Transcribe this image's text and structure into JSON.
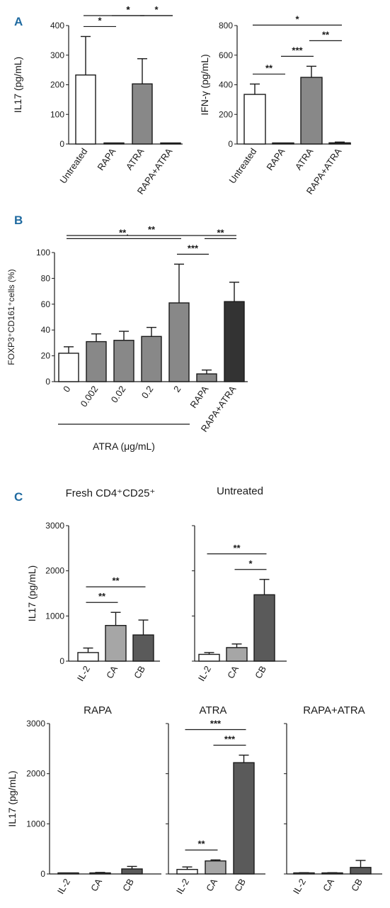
{
  "panel_labels": [
    "A",
    "B",
    "C"
  ],
  "colors": {
    "white": "#ffffff",
    "gray": "#888888",
    "dark": "#333333",
    "medium": "#777777",
    "light": "#a6a6a6",
    "deep": "#5a5a5a"
  },
  "chart_data": [
    {
      "id": "A1",
      "type": "bar",
      "title": "",
      "ylabel": "IL17 (pg/mL)",
      "xlabel": "",
      "ylim": [
        0,
        400
      ],
      "yticks": [
        0,
        100,
        200,
        300,
        400
      ],
      "categories": [
        "Untreated",
        "RAPA",
        "ATRA",
        "RAPA+ATRA"
      ],
      "values": [
        233,
        3,
        203,
        2
      ],
      "errors": [
        130,
        0,
        85,
        0
      ],
      "bar_colors": [
        "#ffffff",
        "#888888",
        "#888888",
        "#333333"
      ],
      "significance": [
        {
          "from": 0,
          "to": 1,
          "label": "*"
        },
        {
          "from": 1,
          "to": 2,
          "label": "*"
        },
        {
          "from": 2,
          "to": 3,
          "label": "*"
        },
        {
          "from": 0,
          "to": 3,
          "label": "*"
        }
      ]
    },
    {
      "id": "A2",
      "type": "bar",
      "title": "",
      "ylabel": "IFN-γ (pg/mL)",
      "xlabel": "",
      "ylim": [
        0,
        800
      ],
      "yticks": [
        0,
        200,
        400,
        600,
        800
      ],
      "categories": [
        "Untreated",
        "RAPA",
        "ATRA",
        "RAPA+ATRA"
      ],
      "values": [
        335,
        3,
        450,
        8
      ],
      "errors": [
        70,
        0,
        75,
        5
      ],
      "bar_colors": [
        "#ffffff",
        "#888888",
        "#888888",
        "#333333"
      ],
      "significance": [
        {
          "from": 0,
          "to": 1,
          "label": "**"
        },
        {
          "from": 1,
          "to": 2,
          "label": "***"
        },
        {
          "from": 2,
          "to": 3,
          "label": "**"
        },
        {
          "from": 0,
          "to": 3,
          "label": "*"
        }
      ]
    },
    {
      "id": "B",
      "type": "bar",
      "title": "",
      "ylabel": "FOXP3⁺CD161⁺cells (%)",
      "xlabel": "ATRA (μg/mL)",
      "ylim": [
        0,
        100
      ],
      "yticks": [
        0,
        20,
        40,
        60,
        80,
        100
      ],
      "categories": [
        "0",
        "0.002",
        "0.02",
        "0.2",
        "2",
        "RAPA",
        "RAPA+ATRA"
      ],
      "values": [
        22,
        31,
        32,
        35,
        61,
        6,
        62
      ],
      "errors": [
        5,
        6,
        7,
        7,
        30,
        3,
        15
      ],
      "bar_colors": [
        "#ffffff",
        "#888888",
        "#888888",
        "#888888",
        "#888888",
        "#888888",
        "#333333"
      ],
      "significance": [
        {
          "from": 4,
          "to": 5,
          "label": "***"
        },
        {
          "from": 5,
          "to": 6,
          "label": "**"
        },
        {
          "from": 0,
          "to": 4,
          "label": "**."
        },
        {
          "from": 0,
          "to": 6,
          "label": "**"
        }
      ]
    },
    {
      "id": "C1",
      "type": "bar",
      "title": "Fresh CD4⁺CD25⁺",
      "ylabel": "IL17 (pg/mL)",
      "xlabel": "",
      "ylim": [
        0,
        3000
      ],
      "yticks": [
        0,
        1000,
        2000,
        3000
      ],
      "categories": [
        "IL-2",
        "CA",
        "CB"
      ],
      "values": [
        190,
        790,
        580
      ],
      "errors": [
        100,
        290,
        330
      ],
      "bar_colors": [
        "#ffffff",
        "#a6a6a6",
        "#5a5a5a"
      ],
      "significance": [
        {
          "from": 0,
          "to": 1,
          "label": "**"
        },
        {
          "from": 0,
          "to": 2,
          "label": "**"
        }
      ]
    },
    {
      "id": "C2",
      "type": "bar",
      "title": "Untreated",
      "ylabel": "",
      "xlabel": "",
      "ylim": [
        0,
        3000
      ],
      "yticks": [
        0,
        1000,
        2000,
        3000
      ],
      "categories": [
        "IL-2",
        "CA",
        "CB"
      ],
      "values": [
        150,
        300,
        1470
      ],
      "errors": [
        40,
        80,
        340
      ],
      "bar_colors": [
        "#ffffff",
        "#a6a6a6",
        "#5a5a5a"
      ],
      "significance": [
        {
          "from": 1,
          "to": 2,
          "label": "*"
        },
        {
          "from": 0,
          "to": 2,
          "label": "**"
        }
      ]
    },
    {
      "id": "C3",
      "type": "bar",
      "title": "RAPA",
      "ylabel": "IL17 (pg/mL)",
      "xlabel": "",
      "ylim": [
        0,
        3000
      ],
      "yticks": [
        0,
        1000,
        2000,
        3000
      ],
      "categories": [
        "IL-2",
        "CA",
        "CB"
      ],
      "values": [
        10,
        20,
        100
      ],
      "errors": [
        0,
        10,
        50
      ],
      "bar_colors": [
        "#ffffff",
        "#a6a6a6",
        "#5a5a5a"
      ],
      "significance": []
    },
    {
      "id": "C4",
      "type": "bar",
      "title": "ATRA",
      "ylabel": "",
      "xlabel": "",
      "ylim": [
        0,
        3000
      ],
      "yticks": [
        0,
        1000,
        2000,
        3000
      ],
      "categories": [
        "IL-2",
        "CA",
        "CB"
      ],
      "values": [
        90,
        260,
        2220
      ],
      "errors": [
        50,
        20,
        150
      ],
      "bar_colors": [
        "#ffffff",
        "#a6a6a6",
        "#5a5a5a"
      ],
      "significance": [
        {
          "from": 0,
          "to": 1,
          "label": "**"
        },
        {
          "from": 1,
          "to": 2,
          "label": "***"
        },
        {
          "from": 0,
          "to": 2,
          "label": "***"
        }
      ]
    },
    {
      "id": "C5",
      "type": "bar",
      "title": "RAPA+ATRA",
      "ylabel": "",
      "xlabel": "",
      "ylim": [
        0,
        3000
      ],
      "yticks": [
        0,
        1000,
        2000,
        3000
      ],
      "categories": [
        "IL-2",
        "CA",
        "CB"
      ],
      "values": [
        20,
        20,
        130
      ],
      "errors": [
        5,
        5,
        140
      ],
      "bar_colors": [
        "#ffffff",
        "#a6a6a6",
        "#5a5a5a"
      ],
      "significance": []
    }
  ]
}
